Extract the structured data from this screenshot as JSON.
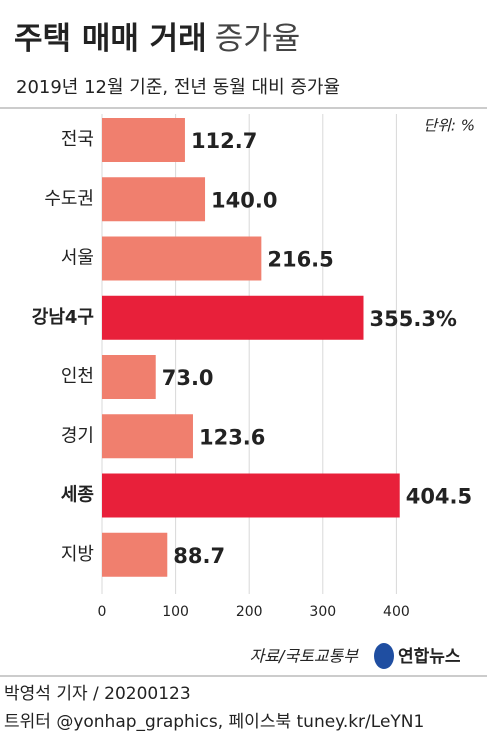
{
  "chart_data": {
    "type": "bar",
    "orientation": "horizontal",
    "title": "주택 매매 거래",
    "title_suffix": "증가율",
    "subtitle": "2019년 12월 기준, 전년 동월 대비 증가율",
    "unit": "단위: %",
    "categories": [
      "전국",
      "수도권",
      "서울",
      "강남4구",
      "인천",
      "경기",
      "세종",
      "지방"
    ],
    "values": [
      112.7,
      140.0,
      216.5,
      355.3,
      73.0,
      123.6,
      404.5,
      88.7
    ],
    "value_labels": [
      "112.7",
      "140.0",
      "216.5",
      "355.3%",
      "73.0",
      "123.6",
      "404.5",
      "88.7"
    ],
    "colors": [
      "#f07f6e",
      "#f07f6e",
      "#f07f6e",
      "#e8203a",
      "#f07f6e",
      "#f07f6e",
      "#e8203a",
      "#f07f6e"
    ],
    "xlim": [
      0,
      500
    ],
    "xticks": [
      0,
      100,
      200,
      300,
      400
    ],
    "grid": true,
    "source": "자료/국토교통부",
    "logo": "연합뉴스",
    "footer": [
      "박영석 기자 / 20200123",
      "트위터 @yonhap_graphics, 페이스북 tuney.kr/LeYN1"
    ]
  }
}
